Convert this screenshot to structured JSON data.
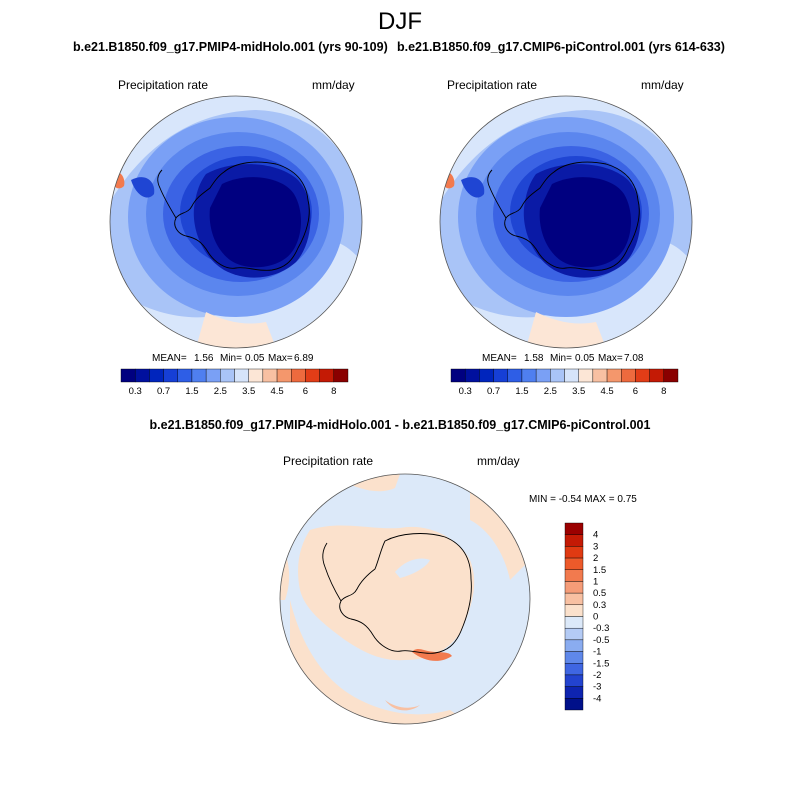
{
  "figure": {
    "season": "DJF",
    "panels": [
      {
        "title": "b.e21.B1850.f09_g17.PMIP4-midHolo.001 (yrs 90-109)",
        "variable": "Precipitation rate",
        "units": "mm/day",
        "stats": {
          "mean_label": "MEAN=",
          "mean": "1.56",
          "min_label": "Min=",
          "min": "0.05",
          "max_label": "Max=",
          "max": "6.89"
        }
      },
      {
        "title": "b.e21.B1850.f09_g17.CMIP6-piControl.001 (yrs 614-633)",
        "variable": "Precipitation rate",
        "units": "mm/day",
        "stats": {
          "mean_label": "MEAN=",
          "mean": "1.58",
          "min_label": "Min=",
          "min": "0.05",
          "max_label": "Max=",
          "max": "7.08"
        }
      }
    ],
    "diff_panel": {
      "title": "b.e21.B1850.f09_g17.PMIP4-midHolo.001 - b.e21.B1850.f09_g17.CMIP6-piControl.001",
      "variable": "Precipitation rate",
      "units": "mm/day",
      "minmax": "MIN =  -0.54 MAX =   0.75"
    },
    "abs_colorbar": {
      "colors": [
        "#000080",
        "#00109e",
        "#0025bd",
        "#163fd6",
        "#2e5ee6",
        "#4f7ff0",
        "#7aa0f5",
        "#a9c4f7",
        "#d6e4fa",
        "#fce6d6",
        "#f8c0a2",
        "#f4976c",
        "#ee6a3e",
        "#e23d17",
        "#c41a05",
        "#8a0000"
      ],
      "tick_labels": [
        "0.3",
        "0.7",
        "1.5",
        "2.5",
        "3.5",
        "4.5",
        "6",
        "8"
      ]
    },
    "diff_colorbar": {
      "colors": [
        "#9b0000",
        "#c41a05",
        "#e03a12",
        "#ed5a2a",
        "#f27a4e",
        "#f59c78",
        "#f8c0a2",
        "#fbe1cc",
        "#dce9f9",
        "#b4cbf5",
        "#8aacf0",
        "#5f88ea",
        "#3f66e2",
        "#2343cf",
        "#0e24b0",
        "#00108a"
      ],
      "tick_labels": [
        "4",
        "3",
        "2",
        "1.5",
        "1",
        "0.5",
        "0.3",
        "0",
        "-0.3",
        "-0.5",
        "-1",
        "-1.5",
        "-2",
        "-3",
        "-4"
      ]
    }
  }
}
